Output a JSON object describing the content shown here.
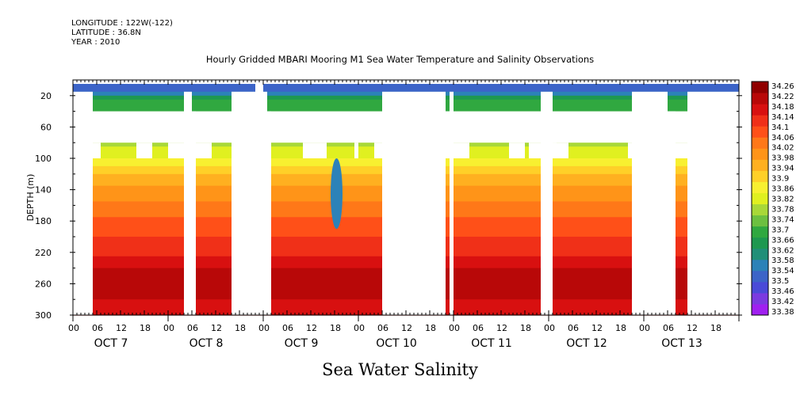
{
  "header": {
    "longitude": "LONGITUDE : 122W(-122)",
    "latitude": "LATITUDE : 36.8N",
    "year": "YEAR : 2010"
  },
  "chart_data": {
    "type": "heatmap",
    "title": "Hourly Gridded MBARI Mooring M1 Sea Water Temperature and Salinity Observations",
    "main_label": "Sea Water Salinity",
    "ylabel": "DEPTH (m)",
    "xlabel": "",
    "y_ticks": [
      20,
      60,
      100,
      140,
      180,
      220,
      260,
      300
    ],
    "ylim": [
      300,
      0
    ],
    "x_hour_ticks": [
      "00",
      "06",
      "12",
      "18",
      "00",
      "06",
      "12",
      "18",
      "00",
      "06",
      "12",
      "18",
      "00",
      "06",
      "12",
      "18",
      "00",
      "06",
      "12",
      "18",
      "00",
      "06",
      "12",
      "18",
      "00",
      "06",
      "12",
      "18"
    ],
    "x_day_labels": [
      "OCT  7",
      "OCT  8",
      "OCT  9",
      "OCT 10",
      "OCT 11",
      "OCT 12",
      "OCT 13"
    ],
    "xlim_hours": [
      0,
      168
    ],
    "colorbar_labels": [
      "34.26",
      "34.22",
      "34.18",
      "34.14",
      "34.1",
      "34.06",
      "34.02",
      "33.98",
      "33.94",
      "33.9",
      "33.86",
      "33.82",
      "33.78",
      "33.74",
      "33.7",
      "33.66",
      "33.62",
      "33.58",
      "33.54",
      "33.5",
      "33.46",
      "33.42",
      "33.38"
    ],
    "colorbar_range": [
      33.38,
      34.26
    ],
    "palette": [
      "#a020f0",
      "#7b3ae0",
      "#4a4ad8",
      "#3c64c8",
      "#2c82b8",
      "#208f78",
      "#1e9850",
      "#30a840",
      "#6cc040",
      "#a8d838",
      "#e0f020",
      "#f8f030",
      "#ffd028",
      "#ffb020",
      "#ff9418",
      "#ff7818",
      "#ff5018",
      "#f03018",
      "#d81010",
      "#b80808",
      "#900000"
    ],
    "depth_profile": [
      {
        "depth": 10,
        "value": 33.52
      },
      {
        "depth": 30,
        "value": 33.7
      },
      {
        "depth": 80,
        "value": 33.78
      },
      {
        "depth": 100,
        "value": 33.84
      },
      {
        "depth": 120,
        "value": 33.92
      },
      {
        "depth": 140,
        "value": 33.98
      },
      {
        "depth": 180,
        "value": 34.06
      },
      {
        "depth": 220,
        "value": 34.12
      },
      {
        "depth": 260,
        "value": 34.22
      },
      {
        "depth": 300,
        "value": 34.14
      }
    ],
    "anomaly": {
      "hour_start": 65,
      "hour_end": 68,
      "depth_top": 100,
      "depth_bottom": 190,
      "value": 33.56
    },
    "data_gaps": [
      {
        "hour_start": 0,
        "hour_end": 5,
        "depth_top": 15,
        "depth_bottom": 300
      },
      {
        "hour_start": 5,
        "hour_end": 168,
        "depth_top": 40,
        "depth_bottom": 80
      },
      {
        "hour_start": 0,
        "hour_end": 168,
        "depth_top": 0,
        "depth_bottom": 5
      },
      {
        "hour_start": 5,
        "hour_end": 7,
        "depth_top": 80,
        "depth_bottom": 100
      },
      {
        "hour_start": 16,
        "hour_end": 20,
        "depth_top": 80,
        "depth_bottom": 100
      },
      {
        "hour_start": 24,
        "hour_end": 28,
        "depth_top": 80,
        "depth_bottom": 100
      },
      {
        "hour_start": 28,
        "hour_end": 30,
        "depth_top": 15,
        "depth_bottom": 300
      },
      {
        "hour_start": 30,
        "hour_end": 31,
        "depth_top": 40,
        "depth_bottom": 300
      },
      {
        "hour_start": 31,
        "hour_end": 35,
        "depth_top": 80,
        "depth_bottom": 100
      },
      {
        "hour_start": 40,
        "hour_end": 41,
        "depth_top": 15,
        "depth_bottom": 300
      },
      {
        "hour_start": 41,
        "hour_end": 46,
        "depth_top": 15,
        "depth_bottom": 300
      },
      {
        "hour_start": 46,
        "hour_end": 48,
        "depth_top": 0,
        "depth_bottom": 300
      },
      {
        "hour_start": 48,
        "hour_end": 49,
        "depth_top": 15,
        "depth_bottom": 300
      },
      {
        "hour_start": 49,
        "hour_end": 50,
        "depth_top": 40,
        "depth_bottom": 300
      },
      {
        "hour_start": 58,
        "hour_end": 64,
        "depth_top": 80,
        "depth_bottom": 100
      },
      {
        "hour_start": 71,
        "hour_end": 72,
        "depth_top": 80,
        "depth_bottom": 100
      },
      {
        "hour_start": 76,
        "hour_end": 78,
        "depth_top": 80,
        "depth_bottom": 100
      },
      {
        "hour_start": 78,
        "hour_end": 94,
        "depth_top": 15,
        "depth_bottom": 300
      },
      {
        "hour_start": 94,
        "hour_end": 95,
        "depth_top": 40,
        "depth_bottom": 100
      },
      {
        "hour_start": 95,
        "hour_end": 96,
        "depth_top": 15,
        "depth_bottom": 300
      },
      {
        "hour_start": 96,
        "hour_end": 100,
        "depth_top": 80,
        "depth_bottom": 100
      },
      {
        "hour_start": 110,
        "hour_end": 114,
        "depth_top": 80,
        "depth_bottom": 100
      },
      {
        "hour_start": 115,
        "hour_end": 125,
        "depth_top": 80,
        "depth_bottom": 100
      },
      {
        "hour_start": 118,
        "hour_end": 121,
        "depth_top": 15,
        "depth_bottom": 300
      },
      {
        "hour_start": 121,
        "hour_end": 122,
        "depth_top": 80,
        "depth_bottom": 100
      },
      {
        "hour_start": 140,
        "hour_end": 141,
        "depth_top": 80,
        "depth_bottom": 100
      },
      {
        "hour_start": 141,
        "hour_end": 150,
        "depth_top": 15,
        "depth_bottom": 300
      },
      {
        "hour_start": 150,
        "hour_end": 152,
        "depth_top": 40,
        "depth_bottom": 300
      },
      {
        "hour_start": 152,
        "hour_end": 155,
        "depth_top": 80,
        "depth_bottom": 100
      },
      {
        "hour_start": 155,
        "hour_end": 168,
        "depth_top": 15,
        "depth_bottom": 300
      }
    ]
  }
}
